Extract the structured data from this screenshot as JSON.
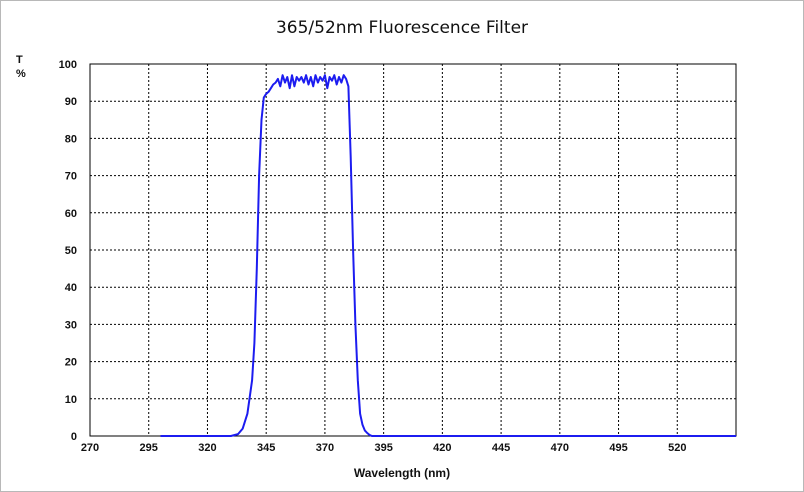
{
  "chart_data": {
    "type": "line",
    "title": "365/52nm Fluorescence Filter",
    "xlabel": "Wavelength (nm)",
    "ylabel_line1": "T",
    "ylabel_line2": "%",
    "xlim": [
      270,
      545
    ],
    "ylim": [
      0,
      100
    ],
    "xticks": [
      270,
      295,
      320,
      345,
      370,
      395,
      420,
      445,
      470,
      495,
      520
    ],
    "yticks": [
      0,
      10,
      20,
      30,
      40,
      50,
      60,
      70,
      80,
      90,
      100
    ],
    "grid": true,
    "series": [
      {
        "color": "#1c1cf0",
        "x": [
          300,
          320,
          330,
          333,
          335,
          337,
          339,
          340,
          341,
          342,
          343,
          344,
          345,
          346,
          347,
          348,
          349,
          350,
          351,
          352,
          353,
          354,
          355,
          356,
          357,
          358,
          359,
          360,
          361,
          362,
          363,
          364,
          365,
          366,
          367,
          368,
          369,
          370,
          371,
          372,
          373,
          374,
          375,
          376,
          377,
          378,
          379,
          380,
          381,
          382,
          383,
          384,
          385,
          386,
          387,
          388,
          389,
          390,
          392,
          395,
          400,
          420,
          450,
          500,
          545
        ],
        "y": [
          0,
          0,
          0,
          0.5,
          2,
          6,
          15,
          25,
          45,
          70,
          85,
          91,
          92,
          92.5,
          93.5,
          94.5,
          95,
          96,
          94,
          97,
          95,
          96.5,
          93.5,
          97,
          94,
          96.5,
          95.5,
          96.5,
          95,
          97,
          94.5,
          96.5,
          94,
          97,
          95,
          96.5,
          95.5,
          97,
          93.5,
          96.5,
          95.5,
          97,
          94.5,
          96.5,
          95,
          97,
          96,
          94,
          75,
          50,
          30,
          15,
          6,
          3,
          1.5,
          0.8,
          0.3,
          0,
          0,
          0,
          0,
          0,
          0,
          0,
          0
        ]
      }
    ]
  }
}
